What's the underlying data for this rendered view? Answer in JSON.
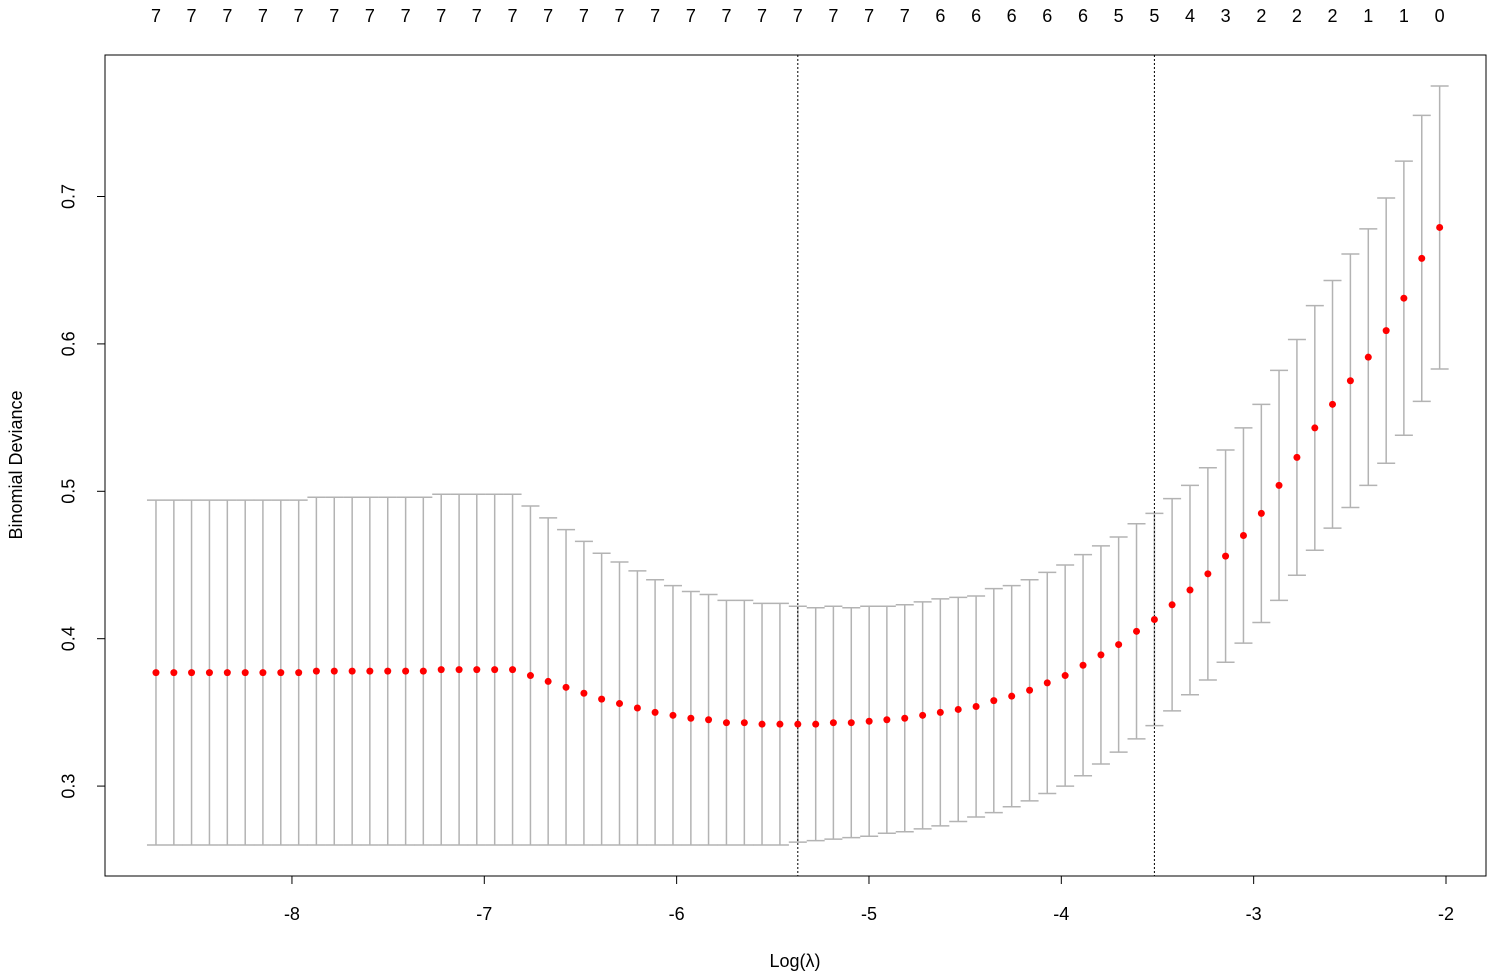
{
  "chart_data": {
    "type": "errorbar",
    "x_label": "Log(λ)",
    "y_label": "Binomial Deviance",
    "x": [
      -8.707,
      -8.614,
      -8.522,
      -8.429,
      -8.336,
      -8.243,
      -8.151,
      -8.058,
      -7.965,
      -7.873,
      -7.78,
      -7.687,
      -7.595,
      -7.502,
      -7.409,
      -7.317,
      -7.224,
      -7.131,
      -7.039,
      -6.946,
      -6.853,
      -6.76,
      -6.668,
      -6.575,
      -6.482,
      -6.39,
      -6.297,
      -6.204,
      -6.112,
      -6.019,
      -5.926,
      -5.834,
      -5.741,
      -5.648,
      -5.556,
      -5.463,
      -5.37,
      -5.277,
      -5.185,
      -5.092,
      -4.999,
      -4.907,
      -4.814,
      -4.721,
      -4.629,
      -4.536,
      -4.443,
      -4.351,
      -4.258,
      -4.165,
      -4.073,
      -3.98,
      -3.887,
      -3.794,
      -3.702,
      -3.609,
      -3.516,
      -3.424,
      -3.331,
      -3.238,
      -3.146,
      -3.053,
      -2.96,
      -2.868,
      -2.775,
      -2.682,
      -2.59,
      -2.497,
      -2.404,
      -2.311,
      -2.219,
      -2.126,
      -2.033
    ],
    "values": [
      0.377,
      0.377,
      0.377,
      0.377,
      0.377,
      0.377,
      0.377,
      0.377,
      0.377,
      0.378,
      0.378,
      0.378,
      0.378,
      0.378,
      0.378,
      0.378,
      0.379,
      0.379,
      0.379,
      0.379,
      0.379,
      0.375,
      0.371,
      0.367,
      0.363,
      0.359,
      0.356,
      0.353,
      0.35,
      0.348,
      0.346,
      0.345,
      0.343,
      0.343,
      0.342,
      0.342,
      0.342,
      0.342,
      0.343,
      0.343,
      0.344,
      0.345,
      0.346,
      0.348,
      0.35,
      0.352,
      0.354,
      0.358,
      0.361,
      0.365,
      0.37,
      0.375,
      0.382,
      0.389,
      0.396,
      0.405,
      0.413,
      0.423,
      0.433,
      0.444,
      0.456,
      0.47,
      0.485,
      0.504,
      0.523,
      0.543,
      0.559,
      0.575,
      0.591,
      0.609,
      0.631,
      0.658,
      0.679
    ],
    "errors": [
      0.117,
      0.117,
      0.117,
      0.117,
      0.117,
      0.117,
      0.117,
      0.117,
      0.117,
      0.118,
      0.118,
      0.118,
      0.118,
      0.118,
      0.118,
      0.118,
      0.119,
      0.119,
      0.119,
      0.119,
      0.119,
      0.115,
      0.111,
      0.107,
      0.103,
      0.099,
      0.096,
      0.093,
      0.09,
      0.088,
      0.086,
      0.085,
      0.083,
      0.083,
      0.082,
      0.082,
      0.08,
      0.079,
      0.079,
      0.078,
      0.078,
      0.077,
      0.077,
      0.077,
      0.077,
      0.076,
      0.075,
      0.076,
      0.075,
      0.075,
      0.075,
      0.075,
      0.075,
      0.074,
      0.073,
      0.073,
      0.072,
      0.072,
      0.071,
      0.072,
      0.072,
      0.073,
      0.074,
      0.078,
      0.08,
      0.083,
      0.084,
      0.086,
      0.087,
      0.09,
      0.093,
      0.097,
      0.096
    ],
    "color": "#ff0000",
    "error_color": "#b3b3b3",
    "vlines": [
      -5.37,
      -3.516
    ],
    "xlim": [
      -8.972,
      -1.792
    ],
    "ylim": [
      0.239,
      0.796
    ],
    "xticks": [
      -8,
      -7,
      -6,
      -5,
      -4,
      -3,
      -2
    ],
    "yticks": [
      0.3,
      0.4,
      0.5,
      0.6,
      0.7
    ],
    "x2ticks": [
      {
        "value": -8.707,
        "label": "7"
      },
      {
        "value": -8.522,
        "label": "7"
      },
      {
        "value": -8.336,
        "label": "7"
      },
      {
        "value": -8.151,
        "label": "7"
      },
      {
        "value": -7.965,
        "label": "7"
      },
      {
        "value": -7.78,
        "label": "7"
      },
      {
        "value": -7.595,
        "label": "7"
      },
      {
        "value": -7.409,
        "label": "7"
      },
      {
        "value": -7.224,
        "label": "7"
      },
      {
        "value": -7.039,
        "label": "7"
      },
      {
        "value": -6.853,
        "label": "7"
      },
      {
        "value": -6.668,
        "label": "7"
      },
      {
        "value": -6.482,
        "label": "7"
      },
      {
        "value": -6.297,
        "label": "7"
      },
      {
        "value": -6.112,
        "label": "7"
      },
      {
        "value": -5.926,
        "label": "7"
      },
      {
        "value": -5.741,
        "label": "7"
      },
      {
        "value": -5.556,
        "label": "7"
      },
      {
        "value": -5.37,
        "label": "7"
      },
      {
        "value": -5.185,
        "label": "7"
      },
      {
        "value": -4.999,
        "label": "7"
      },
      {
        "value": -4.814,
        "label": "7"
      },
      {
        "value": -4.629,
        "label": "6"
      },
      {
        "value": -4.443,
        "label": "6"
      },
      {
        "value": -4.258,
        "label": "6"
      },
      {
        "value": -4.073,
        "label": "6"
      },
      {
        "value": -3.887,
        "label": "6"
      },
      {
        "value": -3.702,
        "label": "5"
      },
      {
        "value": -3.516,
        "label": "5"
      },
      {
        "value": -3.331,
        "label": "4"
      },
      {
        "value": -3.146,
        "label": "3"
      },
      {
        "value": -2.96,
        "label": "2"
      },
      {
        "value": -2.775,
        "label": "2"
      },
      {
        "value": -2.59,
        "label": "2"
      },
      {
        "value": -2.404,
        "label": "1"
      },
      {
        "value": -2.219,
        "label": "1"
      },
      {
        "value": -2.033,
        "label": "0"
      }
    ]
  }
}
